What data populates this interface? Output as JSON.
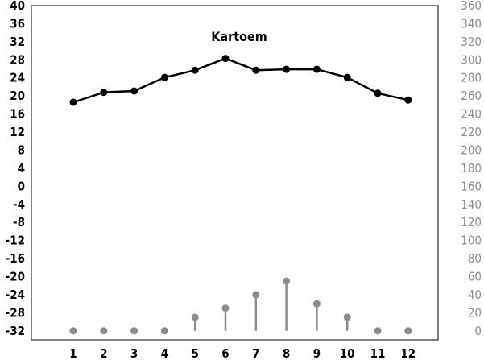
{
  "chart_data": {
    "type": "line",
    "title": "Kartoem",
    "x": [
      "1",
      "2",
      "3",
      "4",
      "5",
      "6",
      "7",
      "8",
      "9",
      "10",
      "11",
      "12"
    ],
    "y_left": {
      "range": [
        -34,
        40
      ],
      "ticks": [
        "40",
        "36",
        "32",
        "28",
        "24",
        "20",
        "16",
        "12",
        "8",
        "4",
        "0",
        "-4",
        "-8",
        "-12",
        "-16",
        "-20",
        "-24",
        "-28",
        "-32"
      ]
    },
    "y_right": {
      "range": [
        -10,
        360
      ],
      "ticks": [
        "360",
        "340",
        "320",
        "300",
        "280",
        "260",
        "240",
        "220",
        "200",
        "180",
        "160",
        "140",
        "120",
        "100",
        "80",
        "60",
        "40",
        "20",
        "0"
      ]
    },
    "series": [
      {
        "axis": "left",
        "style": "line-markers",
        "color": "#000000",
        "values": [
          18.6,
          20.8,
          21.1,
          24.1,
          25.7,
          28.3,
          25.7,
          25.9,
          25.9,
          24.1,
          20.6,
          19.1
        ]
      },
      {
        "axis": "right",
        "style": "stems",
        "color": "#8c8c8c",
        "values": [
          0,
          0,
          0,
          0,
          15,
          25,
          40,
          55,
          30,
          15,
          0,
          0
        ]
      }
    ],
    "grid": false,
    "legend": "none"
  }
}
